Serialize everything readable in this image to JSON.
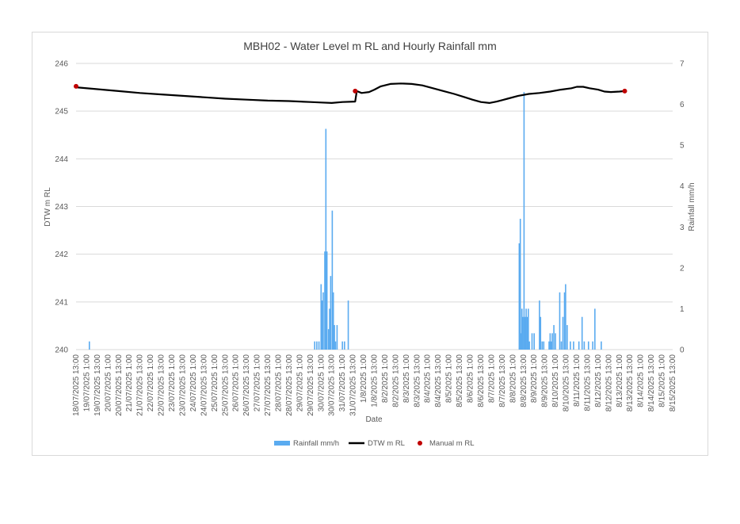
{
  "chart_data": {
    "type": "combo",
    "title": "MBH02 - Water Level m RL and Hourly Rainfall mm",
    "xlabel": "Date",
    "ylabel_left": "DTW m RL",
    "ylabel_right": "Rainfall mm/h",
    "ylim_left": [
      240,
      246
    ],
    "yticks_left": [
      "240",
      "241",
      "242",
      "243",
      "244",
      "245",
      "246"
    ],
    "ylim_right": [
      0,
      7
    ],
    "yticks_right": [
      "0",
      "1",
      "2",
      "3",
      "4",
      "5",
      "6",
      "7"
    ],
    "x_tick_labels": [
      "18/07/2025 13:00",
      "19/07/2025 1:00",
      "19/07/2025 13:00",
      "20/07/2025 1:00",
      "20/07/2025 13:00",
      "21/07/2025 1:00",
      "21/07/2025 13:00",
      "22/07/2025 1:00",
      "22/07/2025 13:00",
      "23/07/2025 1:00",
      "23/07/2025 13:00",
      "24/07/2025 1:00",
      "24/07/2025 13:00",
      "25/07/2025 1:00",
      "25/07/2025 13:00",
      "26/07/2025 1:00",
      "26/07/2025 13:00",
      "27/07/2025 1:00",
      "27/07/2025 13:00",
      "28/07/2025 1:00",
      "28/07/2025 13:00",
      "29/07/2025 1:00",
      "29/07/2025 13:00",
      "30/07/2025 1:00",
      "30/07/2025 13:00",
      "31/07/2025 1:00",
      "31/07/2025 13:00",
      "1/8/2025 1:00",
      "1/8/2025 13:00",
      "8/2/2025 1:00",
      "8/2/2025 13:00",
      "8/3/2025 1:00",
      "8/3/2025 13:00",
      "8/4/2025 1:00",
      "8/4/2025 13:00",
      "8/5/2025 1:00",
      "8/5/2025 13:00",
      "8/6/2025 1:00",
      "8/6/2025 13:00",
      "8/7/2025 1:00",
      "8/7/2025 13:00",
      "8/8/2025 1:00",
      "8/8/2025 13:00",
      "8/9/2025 1:00",
      "8/9/2025 13:00",
      "8/10/2025 1:00",
      "8/10/2025 13:00",
      "8/11/2025 1:00",
      "8/11/2025 13:00",
      "8/12/2025 1:00",
      "8/12/2025 13:00",
      "8/13/2025 1:00",
      "8/13/2025 13:00",
      "8/14/2025 1:00",
      "8/14/2025 13:00",
      "8/15/2025 1:00",
      "8/15/2025 13:00"
    ],
    "legend_position": "bottom",
    "grid": "horizontal",
    "series": [
      {
        "name": "Rainfall mm/h",
        "kind": "bar",
        "axis": "right",
        "color": "#5aabf0",
        "points": [
          [
            1.25,
            0.2
          ],
          [
            22.4,
            0.2
          ],
          [
            22.6,
            0.2
          ],
          [
            22.8,
            0.2
          ],
          [
            23.0,
            1.6
          ],
          [
            23.1,
            1.2
          ],
          [
            23.2,
            1.4
          ],
          [
            23.35,
            2.4
          ],
          [
            23.45,
            5.4
          ],
          [
            23.55,
            2.4
          ],
          [
            23.7,
            0.5
          ],
          [
            23.8,
            1.0
          ],
          [
            23.9,
            1.8
          ],
          [
            24.05,
            3.4
          ],
          [
            24.15,
            1.4
          ],
          [
            24.25,
            0.6
          ],
          [
            24.35,
            0.2
          ],
          [
            24.5,
            0.6
          ],
          [
            25.0,
            0.2
          ],
          [
            25.2,
            0.2
          ],
          [
            25.55,
            1.2
          ],
          [
            41.6,
            2.6
          ],
          [
            41.7,
            3.2
          ],
          [
            41.75,
            0.4
          ],
          [
            41.85,
            1.0
          ],
          [
            41.95,
            0.8
          ],
          [
            42.05,
            6.3
          ],
          [
            42.15,
            0.8
          ],
          [
            42.25,
            1.0
          ],
          [
            42.35,
            0.8
          ],
          [
            42.45,
            1.0
          ],
          [
            42.55,
            0.2
          ],
          [
            42.8,
            0.4
          ],
          [
            43.0,
            0.4
          ],
          [
            43.5,
            1.2
          ],
          [
            43.6,
            0.8
          ],
          [
            43.75,
            0.2
          ],
          [
            43.9,
            0.2
          ],
          [
            44.4,
            0.2
          ],
          [
            44.5,
            0.4
          ],
          [
            44.6,
            0.2
          ],
          [
            44.7,
            0.4
          ],
          [
            44.85,
            0.6
          ],
          [
            45.0,
            0.4
          ],
          [
            45.4,
            1.4
          ],
          [
            45.55,
            0.2
          ],
          [
            45.7,
            0.8
          ],
          [
            45.85,
            1.4
          ],
          [
            45.95,
            1.6
          ],
          [
            46.1,
            0.6
          ],
          [
            46.4,
            0.2
          ],
          [
            46.7,
            0.2
          ],
          [
            47.2,
            0.2
          ],
          [
            47.5,
            0.8
          ],
          [
            47.7,
            0.2
          ],
          [
            48.1,
            0.2
          ],
          [
            48.5,
            0.2
          ],
          [
            48.7,
            1.0
          ],
          [
            49.3,
            0.2
          ]
        ]
      },
      {
        "name": "DTW m RL",
        "kind": "line",
        "axis": "left",
        "color": "#000000",
        "points": [
          [
            0,
            245.5
          ],
          [
            2,
            245.46
          ],
          [
            4,
            245.42
          ],
          [
            6,
            245.38
          ],
          [
            8,
            245.35
          ],
          [
            10,
            245.32
          ],
          [
            12,
            245.29
          ],
          [
            14,
            245.26
          ],
          [
            16,
            245.24
          ],
          [
            18,
            245.22
          ],
          [
            20,
            245.21
          ],
          [
            22,
            245.19
          ],
          [
            23,
            245.18
          ],
          [
            24,
            245.17
          ],
          [
            25,
            245.19
          ],
          [
            26.2,
            245.2
          ],
          [
            26.35,
            245.42
          ],
          [
            26.8,
            245.38
          ],
          [
            27.5,
            245.4
          ],
          [
            28,
            245.45
          ],
          [
            28.6,
            245.52
          ],
          [
            29.5,
            245.57
          ],
          [
            30.5,
            245.58
          ],
          [
            31.5,
            245.57
          ],
          [
            32.5,
            245.54
          ],
          [
            33.5,
            245.48
          ],
          [
            34.5,
            245.42
          ],
          [
            35.5,
            245.36
          ],
          [
            36.5,
            245.29
          ],
          [
            37.2,
            245.24
          ],
          [
            38,
            245.19
          ],
          [
            38.8,
            245.17
          ],
          [
            39.5,
            245.2
          ],
          [
            40.5,
            245.26
          ],
          [
            41.5,
            245.32
          ],
          [
            42.5,
            245.36
          ],
          [
            43.5,
            245.38
          ],
          [
            44.5,
            245.41
          ],
          [
            45.5,
            245.45
          ],
          [
            46.5,
            245.48
          ],
          [
            47,
            245.51
          ],
          [
            47.6,
            245.51
          ],
          [
            48.2,
            245.48
          ],
          [
            49,
            245.45
          ],
          [
            49.6,
            245.41
          ],
          [
            50.2,
            245.4
          ],
          [
            51,
            245.41
          ],
          [
            51.5,
            245.42
          ]
        ]
      },
      {
        "name": "Manual m RL",
        "kind": "scatter",
        "axis": "left",
        "color": "#c00000",
        "points": [
          [
            0,
            245.52
          ],
          [
            26.2,
            245.42
          ],
          [
            51.5,
            245.42
          ]
        ]
      }
    ]
  }
}
